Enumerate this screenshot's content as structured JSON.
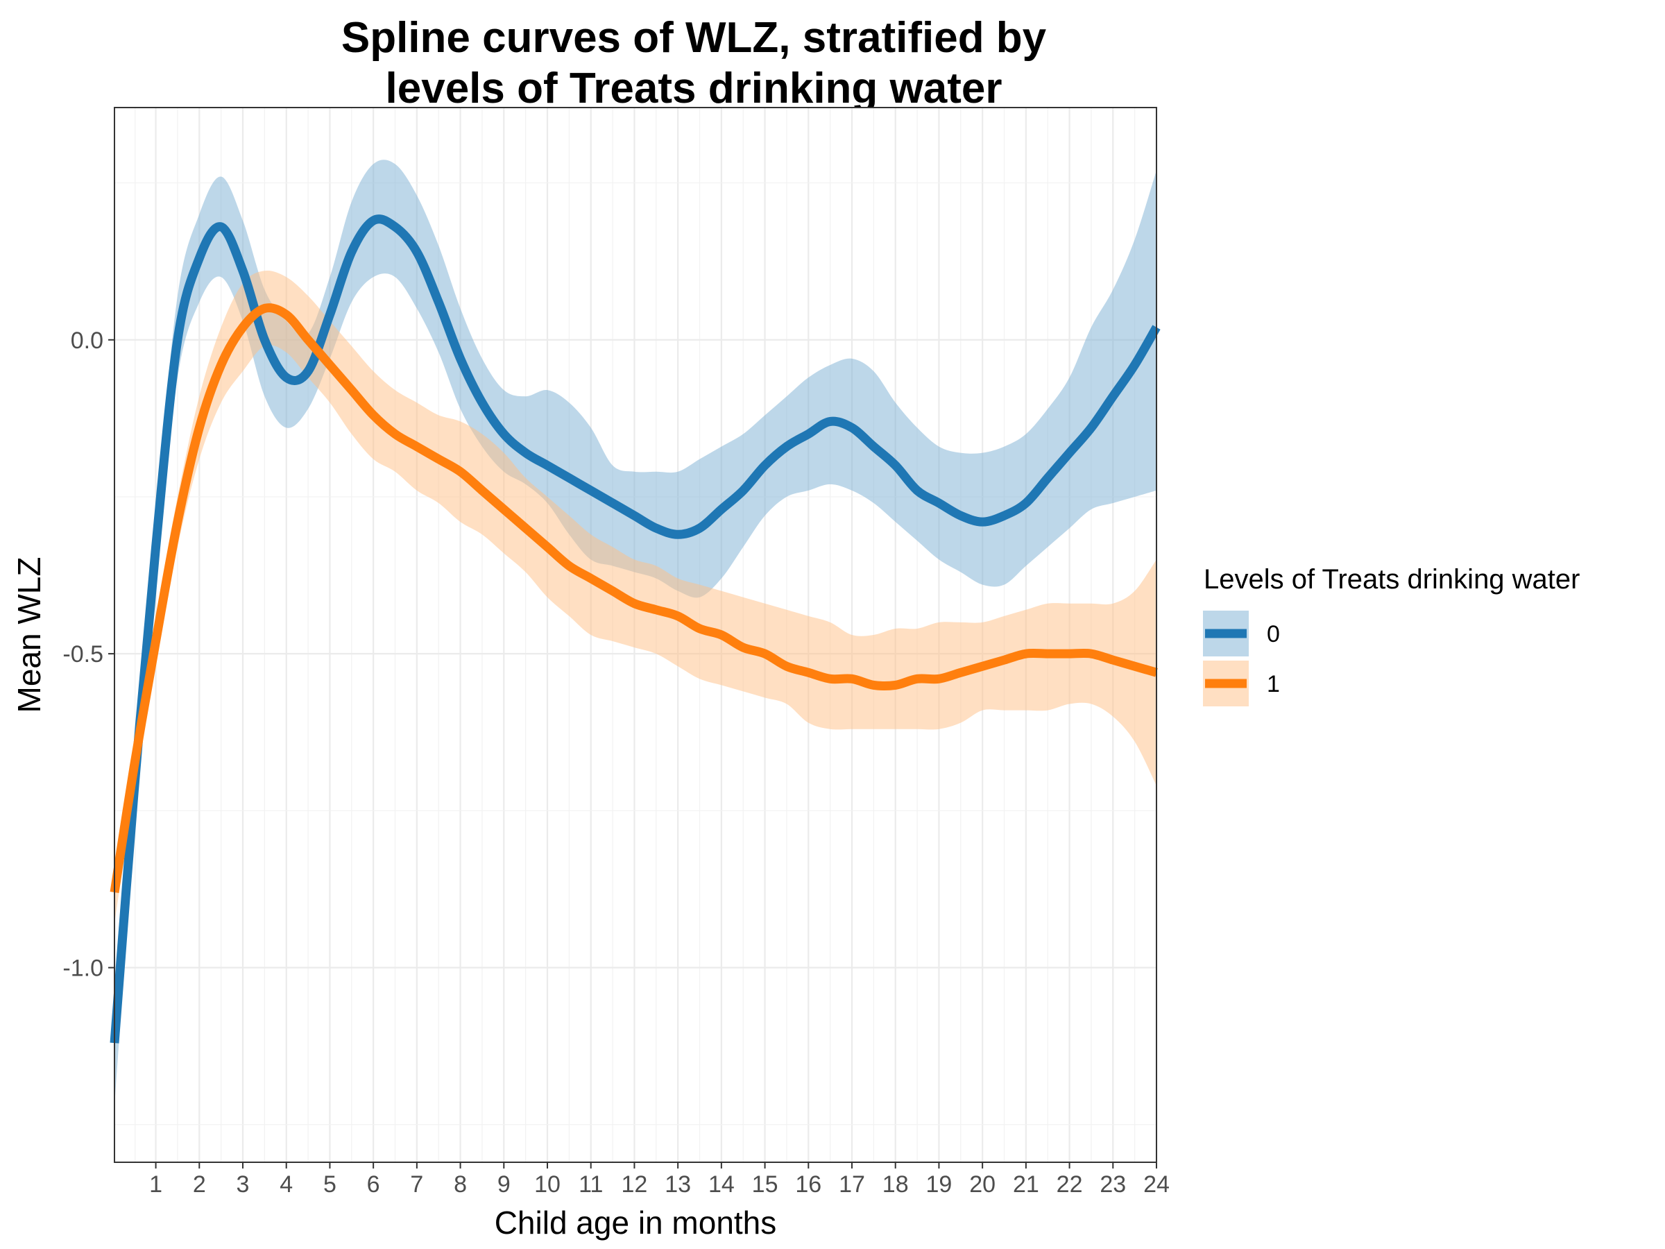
{
  "chart_data": {
    "type": "line",
    "title_lines": [
      "Spline curves of WLZ, stratified by",
      "levels of Treats drinking water"
    ],
    "xlabel": "Child age in months",
    "ylabel": "Mean WLZ",
    "xlim": [
      0.05,
      24
    ],
    "ylim": [
      -1.31,
      0.37
    ],
    "x_ticks": [
      1,
      2,
      3,
      4,
      5,
      6,
      7,
      8,
      9,
      10,
      11,
      12,
      13,
      14,
      15,
      16,
      17,
      18,
      19,
      20,
      21,
      22,
      23,
      24
    ],
    "x_tick_labels": [
      "1",
      "2",
      "3",
      "4",
      "5",
      "6",
      "7",
      "8",
      "9",
      "10",
      "11",
      "12",
      "13",
      "14",
      "15",
      "16",
      "17",
      "18",
      "19",
      "20",
      "21",
      "22",
      "23",
      "24"
    ],
    "y_ticks": [
      0.0,
      -0.5,
      -1.0
    ],
    "y_tick_labels": [
      "0.0",
      "-0.5",
      "-1.0"
    ],
    "grid": true,
    "legend_title": "Levels of Treats drinking water",
    "legend_position": "right",
    "series": [
      {
        "name": "0",
        "color": "#1f77b4",
        "band_color": "#7bafd4",
        "x": [
          0.05,
          0.5,
          1,
          1.5,
          2,
          2.5,
          3,
          3.5,
          4,
          4.5,
          5,
          5.5,
          6,
          6.5,
          7,
          7.5,
          8,
          8.5,
          9,
          9.5,
          10,
          10.5,
          11,
          11.5,
          12,
          12.5,
          13,
          13.5,
          14,
          14.5,
          15,
          15.5,
          16,
          16.5,
          17,
          17.5,
          18,
          18.5,
          19,
          19.5,
          20,
          20.5,
          21,
          21.5,
          22,
          22.5,
          23,
          23.5,
          24
        ],
        "y": [
          -1.12,
          -0.72,
          -0.33,
          0.0,
          0.13,
          0.18,
          0.11,
          0.0,
          -0.06,
          -0.05,
          0.04,
          0.14,
          0.19,
          0.18,
          0.14,
          0.06,
          -0.03,
          -0.1,
          -0.15,
          -0.18,
          -0.2,
          -0.22,
          -0.24,
          -0.26,
          -0.28,
          -0.3,
          -0.31,
          -0.3,
          -0.27,
          -0.24,
          -0.2,
          -0.17,
          -0.15,
          -0.13,
          -0.14,
          -0.17,
          -0.2,
          -0.24,
          -0.26,
          -0.28,
          -0.29,
          -0.28,
          -0.26,
          -0.22,
          -0.18,
          -0.14,
          -0.09,
          -0.04,
          0.02
        ],
        "lower": [
          -1.22,
          -0.79,
          -0.38,
          -0.06,
          0.06,
          0.1,
          0.03,
          -0.09,
          -0.14,
          -0.11,
          -0.03,
          0.06,
          0.1,
          0.1,
          0.05,
          -0.02,
          -0.11,
          -0.17,
          -0.21,
          -0.23,
          -0.26,
          -0.31,
          -0.35,
          -0.36,
          -0.37,
          -0.38,
          -0.4,
          -0.41,
          -0.38,
          -0.33,
          -0.28,
          -0.25,
          -0.24,
          -0.23,
          -0.24,
          -0.26,
          -0.29,
          -0.32,
          -0.35,
          -0.37,
          -0.39,
          -0.39,
          -0.36,
          -0.33,
          -0.3,
          -0.27,
          -0.26,
          -0.25,
          -0.24
        ],
        "upper": [
          -1.02,
          -0.65,
          -0.28,
          0.07,
          0.2,
          0.26,
          0.19,
          0.08,
          0.03,
          0.01,
          0.1,
          0.22,
          0.28,
          0.28,
          0.23,
          0.15,
          0.05,
          -0.03,
          -0.08,
          -0.09,
          -0.08,
          -0.1,
          -0.14,
          -0.2,
          -0.21,
          -0.21,
          -0.21,
          -0.19,
          -0.17,
          -0.15,
          -0.12,
          -0.09,
          -0.06,
          -0.04,
          -0.03,
          -0.05,
          -0.1,
          -0.14,
          -0.17,
          -0.18,
          -0.18,
          -0.17,
          -0.15,
          -0.11,
          -0.06,
          0.02,
          0.08,
          0.16,
          0.27
        ]
      },
      {
        "name": "1",
        "color": "#ff7f0e",
        "band_color": "#ffbf86",
        "x": [
          0.05,
          0.5,
          1,
          1.5,
          2,
          2.5,
          3,
          3.5,
          4,
          4.5,
          5,
          5.5,
          6,
          6.5,
          7,
          7.5,
          8,
          8.5,
          9,
          9.5,
          10,
          10.5,
          11,
          11.5,
          12,
          12.5,
          13,
          13.5,
          14,
          14.5,
          15,
          15.5,
          16,
          16.5,
          17,
          17.5,
          18,
          18.5,
          19,
          19.5,
          20,
          20.5,
          21,
          21.5,
          22,
          22.5,
          23,
          23.5,
          24
        ],
        "y": [
          -0.88,
          -0.68,
          -0.48,
          -0.29,
          -0.14,
          -0.04,
          0.02,
          0.05,
          0.04,
          0.0,
          -0.04,
          -0.08,
          -0.12,
          -0.15,
          -0.17,
          -0.19,
          -0.21,
          -0.24,
          -0.27,
          -0.3,
          -0.33,
          -0.36,
          -0.38,
          -0.4,
          -0.42,
          -0.43,
          -0.44,
          -0.46,
          -0.47,
          -0.49,
          -0.5,
          -0.52,
          -0.53,
          -0.54,
          -0.54,
          -0.55,
          -0.55,
          -0.54,
          -0.54,
          -0.53,
          -0.52,
          -0.51,
          -0.5,
          -0.5,
          -0.5,
          -0.5,
          -0.51,
          -0.52,
          -0.53
        ],
        "lower": [
          -0.93,
          -0.72,
          -0.52,
          -0.33,
          -0.19,
          -0.1,
          -0.05,
          -0.01,
          -0.02,
          -0.06,
          -0.1,
          -0.15,
          -0.19,
          -0.21,
          -0.24,
          -0.26,
          -0.29,
          -0.31,
          -0.34,
          -0.37,
          -0.41,
          -0.44,
          -0.47,
          -0.48,
          -0.49,
          -0.5,
          -0.52,
          -0.54,
          -0.55,
          -0.56,
          -0.57,
          -0.58,
          -0.61,
          -0.62,
          -0.62,
          -0.62,
          -0.62,
          -0.62,
          -0.62,
          -0.61,
          -0.59,
          -0.59,
          -0.59,
          -0.59,
          -0.58,
          -0.58,
          -0.6,
          -0.64,
          -0.71
        ],
        "upper": [
          -0.83,
          -0.64,
          -0.44,
          -0.25,
          -0.09,
          0.02,
          0.09,
          0.11,
          0.1,
          0.07,
          0.03,
          -0.01,
          -0.05,
          -0.08,
          -0.1,
          -0.12,
          -0.13,
          -0.15,
          -0.18,
          -0.22,
          -0.25,
          -0.28,
          -0.31,
          -0.33,
          -0.35,
          -0.36,
          -0.38,
          -0.39,
          -0.4,
          -0.41,
          -0.42,
          -0.43,
          -0.44,
          -0.45,
          -0.47,
          -0.47,
          -0.46,
          -0.46,
          -0.45,
          -0.45,
          -0.45,
          -0.44,
          -0.43,
          -0.42,
          -0.42,
          -0.42,
          -0.42,
          -0.4,
          -0.35
        ]
      }
    ]
  }
}
